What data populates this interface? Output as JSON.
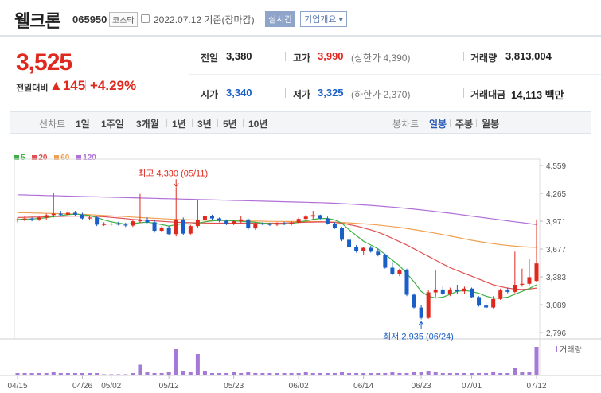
{
  "header": {
    "stock_name": "웰크론",
    "stock_code": "065950",
    "market": "코스닥",
    "date_text": "2022.07.12 기준(장마감)",
    "realtime_label": "실시간",
    "company_label": "기업개요 ▾"
  },
  "quote": {
    "price": "3,525",
    "change_label": "전일대비",
    "change": "▲145",
    "change_pct": "+4.29%",
    "prev_close_label": "전일",
    "prev_close": "3,380",
    "high_label": "고가",
    "high": "3,990",
    "upper_limit": "(상한가 4,390)",
    "volume_label": "거래량",
    "volume": "3,813,004",
    "open_label": "시가",
    "open": "3,340",
    "low_label": "저가",
    "low": "3,325",
    "lower_limit": "(하한가 2,370)",
    "value_label": "거래대금",
    "value": "14,113 백만"
  },
  "periods": {
    "line_label": "선차트",
    "items": [
      "1일",
      "1주일",
      "3개월",
      "1년",
      "3년",
      "5년",
      "10년"
    ],
    "candle_label": "봉차트",
    "candle_items": [
      "일봉",
      "주봉",
      "월봉"
    ],
    "active_candle": "일봉"
  },
  "colors": {
    "up": "#e0291e",
    "down": "#1a5fc7",
    "ma5": "#3cb043",
    "ma20": "#e05050",
    "ma60": "#f0a050",
    "ma120": "#b070d8"
  },
  "chart_data": {
    "type": "candlestick",
    "legend": [
      {
        "name": "5",
        "color": "#3cb043"
      },
      {
        "name": "20",
        "color": "#e05050"
      },
      {
        "name": "60",
        "color": "#f0a050"
      },
      {
        "name": "120",
        "color": "#b070d8"
      }
    ],
    "y_ticks": [
      "4,559",
      "4,265",
      "3,971",
      "3,677",
      "3,383",
      "3,089",
      "2,796"
    ],
    "ylim": [
      2796,
      4559
    ],
    "x_ticks": [
      "04/15",
      "04/26",
      "05/02",
      "05/12",
      "05/23",
      "06/02",
      "06/14",
      "06/23",
      "07/01",
      "07/12"
    ],
    "high_annotation": "최고 4,330 (05/11)",
    "low_annotation": "최저 2,935 (06/24)",
    "volume_label": "거래량",
    "candles": [
      {
        "o": 3980,
        "h": 4010,
        "l": 3960,
        "c": 3990
      },
      {
        "o": 3990,
        "h": 4030,
        "l": 3970,
        "c": 4000
      },
      {
        "o": 4000,
        "h": 4010,
        "l": 3970,
        "c": 3990
      },
      {
        "o": 3990,
        "h": 4020,
        "l": 3975,
        "c": 4010
      },
      {
        "o": 4010,
        "h": 4050,
        "l": 3990,
        "c": 4035
      },
      {
        "o": 4035,
        "h": 4270,
        "l": 4010,
        "c": 4050
      },
      {
        "o": 4050,
        "h": 4080,
        "l": 4020,
        "c": 4040
      },
      {
        "o": 4040,
        "h": 4100,
        "l": 4020,
        "c": 4060
      },
      {
        "o": 4060,
        "h": 4080,
        "l": 4030,
        "c": 4040
      },
      {
        "o": 4040,
        "h": 4060,
        "l": 3990,
        "c": 4000
      },
      {
        "o": 4000,
        "h": 4030,
        "l": 3985,
        "c": 4010
      },
      {
        "o": 4010,
        "h": 4020,
        "l": 3920,
        "c": 3935
      },
      {
        "o": 3935,
        "h": 3960,
        "l": 3920,
        "c": 3940
      },
      {
        "o": 3940,
        "h": 3970,
        "l": 3920,
        "c": 3945
      },
      {
        "o": 3945,
        "h": 3965,
        "l": 3925,
        "c": 3935
      },
      {
        "o": 3935,
        "h": 3955,
        "l": 3910,
        "c": 3925
      },
      {
        "o": 3925,
        "h": 3990,
        "l": 3910,
        "c": 3970
      },
      {
        "o": 3970,
        "h": 4260,
        "l": 3950,
        "c": 3980
      },
      {
        "o": 3980,
        "h": 4010,
        "l": 3950,
        "c": 3960
      },
      {
        "o": 3960,
        "h": 3990,
        "l": 3850,
        "c": 3870
      },
      {
        "o": 3870,
        "h": 3920,
        "l": 3855,
        "c": 3905
      },
      {
        "o": 3905,
        "h": 3920,
        "l": 3820,
        "c": 3835
      },
      {
        "o": 3835,
        "h": 4330,
        "l": 3810,
        "c": 3990
      },
      {
        "o": 3990,
        "h": 4010,
        "l": 3820,
        "c": 3840
      },
      {
        "o": 3840,
        "h": 3930,
        "l": 3830,
        "c": 3920
      },
      {
        "o": 3920,
        "h": 4200,
        "l": 3900,
        "c": 3980
      },
      {
        "o": 3980,
        "h": 4060,
        "l": 3960,
        "c": 4030
      },
      {
        "o": 4030,
        "h": 4040,
        "l": 3980,
        "c": 4000
      },
      {
        "o": 4000,
        "h": 4010,
        "l": 3960,
        "c": 3975
      },
      {
        "o": 3975,
        "h": 3990,
        "l": 3930,
        "c": 3945
      },
      {
        "o": 3945,
        "h": 3980,
        "l": 3930,
        "c": 3970
      },
      {
        "o": 3970,
        "h": 4030,
        "l": 3950,
        "c": 3990
      },
      {
        "o": 3990,
        "h": 4000,
        "l": 3880,
        "c": 3895
      },
      {
        "o": 3895,
        "h": 3960,
        "l": 3880,
        "c": 3945
      },
      {
        "o": 3945,
        "h": 3960,
        "l": 3930,
        "c": 3940
      },
      {
        "o": 3940,
        "h": 3955,
        "l": 3920,
        "c": 3935
      },
      {
        "o": 3935,
        "h": 3960,
        "l": 3920,
        "c": 3950
      },
      {
        "o": 3950,
        "h": 3965,
        "l": 3930,
        "c": 3940
      },
      {
        "o": 3940,
        "h": 3970,
        "l": 3925,
        "c": 3955
      },
      {
        "o": 3955,
        "h": 4010,
        "l": 3950,
        "c": 3995
      },
      {
        "o": 3995,
        "h": 4040,
        "l": 3975,
        "c": 4020
      },
      {
        "o": 4020,
        "h": 4080,
        "l": 3990,
        "c": 4035
      },
      {
        "o": 4035,
        "h": 4040,
        "l": 3990,
        "c": 4000
      },
      {
        "o": 4000,
        "h": 4020,
        "l": 3935,
        "c": 3945
      },
      {
        "o": 3945,
        "h": 3960,
        "l": 3890,
        "c": 3900
      },
      {
        "o": 3900,
        "h": 3910,
        "l": 3760,
        "c": 3775
      },
      {
        "o": 3775,
        "h": 3800,
        "l": 3690,
        "c": 3700
      },
      {
        "o": 3700,
        "h": 3720,
        "l": 3640,
        "c": 3655
      },
      {
        "o": 3655,
        "h": 3700,
        "l": 3620,
        "c": 3690
      },
      {
        "o": 3690,
        "h": 3710,
        "l": 3640,
        "c": 3650
      },
      {
        "o": 3650,
        "h": 3680,
        "l": 3600,
        "c": 3615
      },
      {
        "o": 3615,
        "h": 3630,
        "l": 3470,
        "c": 3480
      },
      {
        "o": 3480,
        "h": 3540,
        "l": 3400,
        "c": 3410
      },
      {
        "o": 3410,
        "h": 3470,
        "l": 3390,
        "c": 3455
      },
      {
        "o": 3455,
        "h": 3470,
        "l": 3180,
        "c": 3195
      },
      {
        "o": 3195,
        "h": 3210,
        "l": 3050,
        "c": 3060
      },
      {
        "o": 3060,
        "h": 3090,
        "l": 2935,
        "c": 2950
      },
      {
        "o": 2950,
        "h": 3240,
        "l": 2940,
        "c": 3220
      },
      {
        "o": 3220,
        "h": 3450,
        "l": 3170,
        "c": 3250
      },
      {
        "o": 3250,
        "h": 3290,
        "l": 3190,
        "c": 3200
      },
      {
        "o": 3200,
        "h": 3270,
        "l": 3180,
        "c": 3250
      },
      {
        "o": 3250,
        "h": 3300,
        "l": 3200,
        "c": 3230
      },
      {
        "o": 3230,
        "h": 3280,
        "l": 3200,
        "c": 3260
      },
      {
        "o": 3260,
        "h": 3270,
        "l": 3160,
        "c": 3170
      },
      {
        "o": 3170,
        "h": 3180,
        "l": 3070,
        "c": 3080
      },
      {
        "o": 3080,
        "h": 3110,
        "l": 3040,
        "c": 3060
      },
      {
        "o": 3060,
        "h": 3180,
        "l": 3050,
        "c": 3150
      },
      {
        "o": 3150,
        "h": 3260,
        "l": 3140,
        "c": 3240
      },
      {
        "o": 3240,
        "h": 3270,
        "l": 3210,
        "c": 3225
      },
      {
        "o": 3225,
        "h": 3650,
        "l": 3210,
        "c": 3300
      },
      {
        "o": 3300,
        "h": 3470,
        "l": 3280,
        "c": 3310
      },
      {
        "o": 3310,
        "h": 3570,
        "l": 3290,
        "c": 3380
      },
      {
        "o": 3340,
        "h": 3990,
        "l": 3325,
        "c": 3525
      }
    ],
    "volumes": [
      2,
      2,
      2,
      2,
      2,
      3,
      2,
      2,
      2,
      2,
      2,
      2,
      1,
      1,
      1,
      1,
      2,
      9,
      3,
      2,
      2,
      3,
      22,
      4,
      3,
      18,
      4,
      2,
      2,
      2,
      3,
      2,
      3,
      2,
      2,
      2,
      2,
      2,
      2,
      2,
      3,
      2,
      2,
      2,
      2,
      3,
      2,
      2,
      2,
      2,
      2,
      2,
      3,
      2,
      2,
      3,
      3,
      4,
      3,
      2,
      2,
      2,
      2,
      2,
      2,
      2,
      3,
      2,
      2,
      6,
      3,
      3,
      24
    ],
    "ma5": [
      3990,
      3992,
      3995,
      4000,
      4008,
      4020,
      4030,
      4040,
      4045,
      4040,
      4030,
      4010,
      3985,
      3965,
      3950,
      3940,
      3945,
      3955,
      3960,
      3950,
      3935,
      3920,
      3935,
      3945,
      3940,
      3950,
      3965,
      3975,
      3980,
      3980,
      3975,
      3970,
      3965,
      3960,
      3950,
      3945,
      3940,
      3940,
      3945,
      3960,
      3975,
      3990,
      4000,
      4000,
      3985,
      3950,
      3880,
      3820,
      3760,
      3720,
      3680,
      3620,
      3560,
      3500,
      3420,
      3330,
      3230,
      3180,
      3160,
      3170,
      3200,
      3230,
      3240,
      3230,
      3210,
      3180,
      3160,
      3160,
      3170,
      3200,
      3230,
      3260,
      3300
    ],
    "ma20": [
      4010,
      4012,
      4014,
      4015,
      4018,
      4020,
      4022,
      4024,
      4025,
      4025,
      4024,
      4022,
      4018,
      4012,
      4005,
      3998,
      3990,
      3985,
      3980,
      3975,
      3970,
      3965,
      3960,
      3958,
      3955,
      3953,
      3952,
      3950,
      3950,
      3950,
      3950,
      3950,
      3950,
      3950,
      3950,
      3950,
      3950,
      3952,
      3955,
      3958,
      3960,
      3962,
      3964,
      3962,
      3958,
      3950,
      3935,
      3920,
      3900,
      3880,
      3855,
      3825,
      3790,
      3755,
      3720,
      3680,
      3640,
      3600,
      3560,
      3520,
      3480,
      3450,
      3420,
      3390,
      3360,
      3330,
      3300,
      3280,
      3265,
      3255,
      3250,
      3255,
      3265
    ],
    "ma60": [
      4060,
      4060,
      4058,
      4056,
      4054,
      4052,
      4050,
      4048,
      4046,
      4044,
      4040,
      4036,
      4032,
      4028,
      4024,
      4020,
      4015,
      4010,
      4006,
      4002,
      3998,
      3994,
      3990,
      3988,
      3986,
      3984,
      3982,
      3980,
      3978,
      3976,
      3975,
      3974,
      3973,
      3972,
      3971,
      3970,
      3969,
      3968,
      3968,
      3968,
      3968,
      3967,
      3966,
      3965,
      3962,
      3958,
      3954,
      3949,
      3944,
      3938,
      3931,
      3923,
      3914,
      3905,
      3894,
      3882,
      3870,
      3857,
      3844,
      3830,
      3815,
      3800,
      3785,
      3770,
      3757,
      3745,
      3734,
      3724,
      3715,
      3708,
      3702,
      3698,
      3695
    ],
    "ma120": [
      4250,
      4248,
      4246,
      4244,
      4242,
      4240,
      4238,
      4236,
      4234,
      4232,
      4230,
      4228,
      4226,
      4224,
      4222,
      4220,
      4218,
      4216,
      4214,
      4212,
      4210,
      4208,
      4206,
      4204,
      4202,
      4200,
      4198,
      4196,
      4194,
      4192,
      4190,
      4188,
      4186,
      4184,
      4182,
      4180,
      4178,
      4176,
      4174,
      4172,
      4170,
      4168,
      4166,
      4164,
      4160,
      4156,
      4152,
      4148,
      4143,
      4138,
      4132,
      4126,
      4120,
      4113,
      4106,
      4098,
      4090,
      4082,
      4073,
      4064,
      4055,
      4045,
      4035,
      4025,
      4015,
      4005,
      3995,
      3985,
      3975,
      3965,
      3955,
      3945,
      3935
    ]
  }
}
